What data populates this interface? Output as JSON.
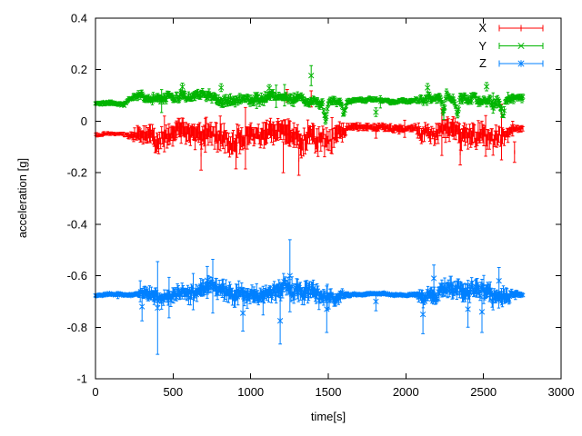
{
  "chart_data": {
    "type": "scatter-errorbars",
    "title": "",
    "xlabel": "time[s]",
    "ylabel": "acceleration [g]",
    "xlim": [
      0,
      3000
    ],
    "ylim": [
      -1,
      0.4
    ],
    "grid": false,
    "legend_position": "top-right-inside",
    "background_color": "#ffffff",
    "axis_color": "#000000",
    "xticks": {
      "values": [
        0,
        500,
        1000,
        1500,
        2000,
        2500,
        3000
      ],
      "labels": [
        "0",
        "500",
        "1000",
        "1500",
        "2000",
        "2500",
        "3000"
      ]
    },
    "yticks": {
      "values": [
        0.4,
        0.2,
        0,
        -0.2,
        -0.4,
        -0.6,
        -0.8,
        -1
      ],
      "labels": [
        "0.4",
        "0.2",
        "0",
        "-0.2",
        "-0.4",
        "-0.6",
        "-0.8",
        "-1"
      ]
    },
    "sampling": {
      "dt": 6,
      "t_end": 2755
    },
    "series": [
      {
        "name": "X",
        "color": "#ff0000",
        "marker": "tick",
        "seed": 101,
        "up": 0.72,
        "down": 1.25,
        "envelope": [
          [
            0,
            -0.052,
            0.008,
            0.006
          ],
          [
            185,
            -0.052,
            0.008,
            0.006
          ],
          [
            235,
            -0.048,
            0.018,
            0.014
          ],
          [
            300,
            -0.046,
            0.034,
            0.03
          ],
          [
            500,
            -0.05,
            0.04,
            0.034
          ],
          [
            700,
            -0.055,
            0.044,
            0.038
          ],
          [
            900,
            -0.048,
            0.04,
            0.036
          ],
          [
            1100,
            -0.05,
            0.044,
            0.038
          ],
          [
            1250,
            -0.058,
            0.048,
            0.042
          ],
          [
            1400,
            -0.05,
            0.044,
            0.038
          ],
          [
            1465,
            -0.052,
            0.04,
            0.034
          ],
          [
            1483,
            -0.07,
            0.045,
            0.038
          ],
          [
            1502,
            -0.05,
            0.038,
            0.032
          ],
          [
            1555,
            -0.044,
            0.034,
            0.028
          ],
          [
            1598,
            -0.045,
            0.03,
            0.024
          ],
          [
            1625,
            -0.028,
            0.012,
            0.011
          ],
          [
            1655,
            -0.024,
            0.01,
            0.013
          ],
          [
            2055,
            -0.024,
            0.01,
            0.013
          ],
          [
            2090,
            -0.04,
            0.028,
            0.024
          ],
          [
            2250,
            -0.048,
            0.04,
            0.034
          ],
          [
            2450,
            -0.042,
            0.04,
            0.034
          ],
          [
            2600,
            -0.046,
            0.038,
            0.032
          ],
          [
            2700,
            -0.036,
            0.016,
            0.013
          ],
          [
            2755,
            -0.03,
            0.012,
            0.01
          ]
        ],
        "outliers": [
          [
            680,
            -0.13,
            -0.19,
            -0.07
          ],
          [
            905,
            -0.135,
            -0.185,
            -0.085
          ],
          [
            1210,
            -0.14,
            -0.2,
            -0.08
          ],
          [
            1235,
            0.1,
            0.075,
            0.123
          ],
          [
            1310,
            -0.15,
            -0.21,
            -0.09
          ],
          [
            1390,
            0.09,
            0.055,
            0.118
          ],
          [
            1807,
            -0.045,
            -0.066,
            -0.024
          ],
          [
            2350,
            -0.125,
            -0.17,
            -0.08
          ],
          [
            2700,
            -0.12,
            -0.16,
            -0.08
          ]
        ]
      },
      {
        "name": "Y",
        "color": "#00b400",
        "marker": "x",
        "seed": 202,
        "up": 0.95,
        "down": 1.1,
        "envelope": [
          [
            0,
            0.065,
            0.01,
            0.007
          ],
          [
            185,
            0.065,
            0.01,
            0.007
          ],
          [
            230,
            0.093,
            0.014,
            0.01
          ],
          [
            300,
            0.1,
            0.017,
            0.012
          ],
          [
            500,
            0.09,
            0.022,
            0.014
          ],
          [
            700,
            0.094,
            0.022,
            0.015
          ],
          [
            900,
            0.089,
            0.021,
            0.014
          ],
          [
            1100,
            0.085,
            0.022,
            0.015
          ],
          [
            1300,
            0.09,
            0.022,
            0.015
          ],
          [
            1465,
            0.08,
            0.02,
            0.014
          ],
          [
            1483,
            0.015,
            0.018,
            0.012
          ],
          [
            1502,
            0.08,
            0.018,
            0.013
          ],
          [
            1578,
            0.078,
            0.018,
            0.012
          ],
          [
            1598,
            0.015,
            0.015,
            0.012
          ],
          [
            1620,
            0.072,
            0.014,
            0.01
          ],
          [
            1655,
            0.08,
            0.009,
            0.008
          ],
          [
            2055,
            0.08,
            0.009,
            0.008
          ],
          [
            2090,
            0.09,
            0.019,
            0.013
          ],
          [
            2225,
            0.086,
            0.022,
            0.014
          ],
          [
            2243,
            0.015,
            0.018,
            0.012
          ],
          [
            2262,
            0.086,
            0.022,
            0.014
          ],
          [
            2315,
            0.086,
            0.022,
            0.014
          ],
          [
            2332,
            0.012,
            0.016,
            0.012
          ],
          [
            2350,
            0.088,
            0.022,
            0.014
          ],
          [
            2500,
            0.09,
            0.024,
            0.015
          ],
          [
            2605,
            0.085,
            0.024,
            0.015
          ],
          [
            2625,
            0.002,
            0.016,
            0.012
          ],
          [
            2645,
            0.085,
            0.022,
            0.014
          ],
          [
            2700,
            0.085,
            0.014,
            0.01
          ],
          [
            2755,
            0.09,
            0.012,
            0.009
          ]
        ],
        "outliers": [
          [
            560,
            0.133,
            0.118,
            0.148
          ],
          [
            810,
            0.13,
            0.115,
            0.145
          ],
          [
            1120,
            0.128,
            0.112,
            0.142
          ],
          [
            1390,
            0.177,
            0.138,
            0.216
          ],
          [
            1807,
            0.035,
            0.018,
            0.052
          ],
          [
            2140,
            0.13,
            0.114,
            0.146
          ],
          [
            2520,
            0.134,
            0.118,
            0.15
          ]
        ]
      },
      {
        "name": "Z",
        "color": "#0080ff",
        "marker": "asterisk",
        "seed": 303,
        "up": 1.0,
        "down": 1.0,
        "envelope": [
          [
            0,
            -0.675,
            0.006,
            0.005
          ],
          [
            255,
            -0.675,
            0.006,
            0.005
          ],
          [
            310,
            -0.67,
            0.022,
            0.018
          ],
          [
            400,
            -0.671,
            0.028,
            0.024
          ],
          [
            600,
            -0.667,
            0.031,
            0.027
          ],
          [
            800,
            -0.66,
            0.034,
            0.029
          ],
          [
            1000,
            -0.667,
            0.031,
            0.027
          ],
          [
            1250,
            -0.664,
            0.038,
            0.033
          ],
          [
            1450,
            -0.669,
            0.036,
            0.031
          ],
          [
            1590,
            -0.671,
            0.02,
            0.016
          ],
          [
            1645,
            -0.673,
            0.006,
            0.005
          ],
          [
            2060,
            -0.673,
            0.006,
            0.005
          ],
          [
            2100,
            -0.667,
            0.028,
            0.024
          ],
          [
            2300,
            -0.661,
            0.036,
            0.031
          ],
          [
            2500,
            -0.664,
            0.036,
            0.031
          ],
          [
            2650,
            -0.667,
            0.032,
            0.027
          ],
          [
            2700,
            -0.672,
            0.012,
            0.009
          ],
          [
            2755,
            -0.67,
            0.01,
            0.008
          ]
        ],
        "outliers": [
          [
            300,
            -0.72,
            -0.775,
            -0.665
          ],
          [
            400,
            -0.725,
            -0.905,
            -0.545
          ],
          [
            720,
            -0.618,
            -0.672,
            -0.564
          ],
          [
            950,
            -0.745,
            -0.815,
            -0.675
          ],
          [
            1190,
            -0.775,
            -0.865,
            -0.685
          ],
          [
            1253,
            -0.6,
            -0.74,
            -0.46
          ],
          [
            1490,
            -0.73,
            -0.82,
            -0.64
          ],
          [
            1807,
            -0.7,
            -0.736,
            -0.664
          ],
          [
            2110,
            -0.75,
            -0.825,
            -0.675
          ],
          [
            2180,
            -0.61,
            -0.662,
            -0.558
          ],
          [
            2400,
            -0.73,
            -0.8,
            -0.66
          ],
          [
            2490,
            -0.74,
            -0.82,
            -0.66
          ],
          [
            2600,
            -0.62,
            -0.672,
            -0.568
          ]
        ]
      }
    ]
  }
}
